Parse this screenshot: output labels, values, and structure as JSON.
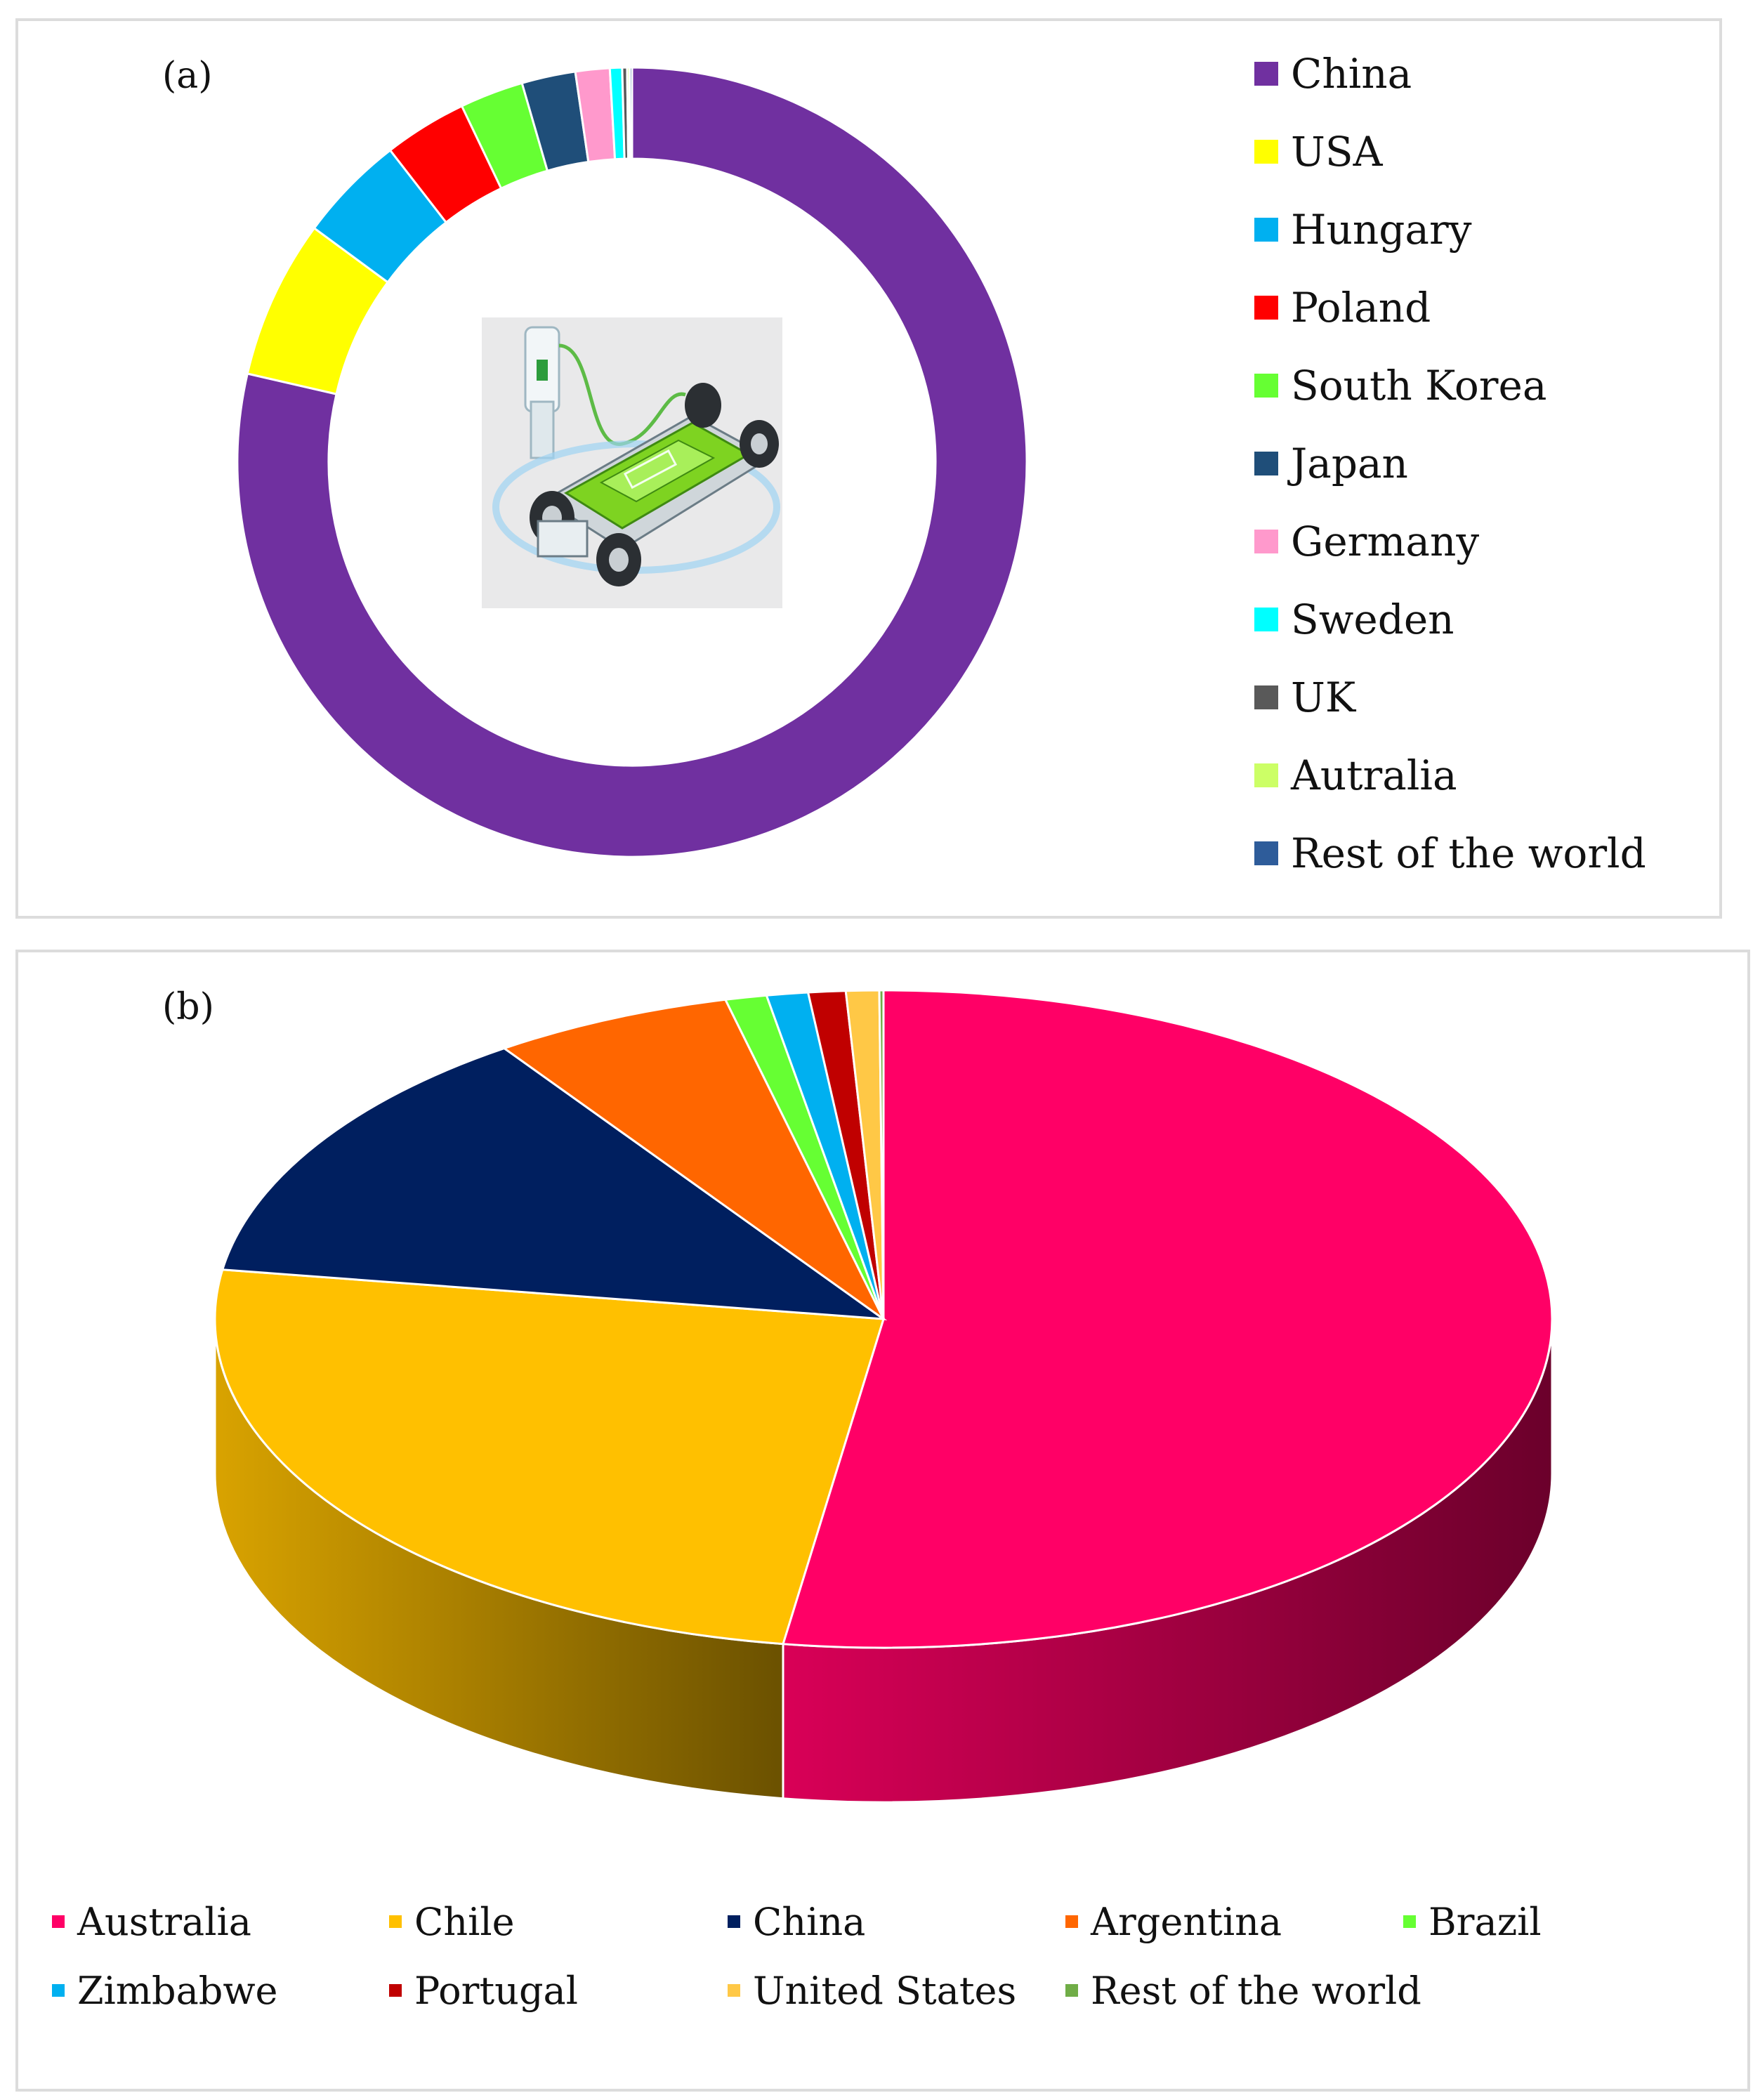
{
  "chart_data": [
    {
      "panel_label": "(a)",
      "type": "pie",
      "variant": "donut",
      "legend_placement": "right",
      "categories": [
        "China",
        "USA",
        "Hungary",
        "Poland",
        "South Korea",
        "Japan",
        "Germany",
        "Sweden",
        "UK",
        "Autralia",
        "Rest of the world"
      ],
      "values": [
        78.6,
        6.5,
        4.4,
        3.4,
        2.6,
        2.2,
        1.4,
        0.5,
        0.2,
        0.1,
        0.1
      ],
      "colors": [
        "#7030a0",
        "#ffff00",
        "#00b0f0",
        "#ff0000",
        "#66ff33",
        "#1f4e79",
        "#ff99cc",
        "#00ffff",
        "#595959",
        "#ccff66",
        "#2e5c9a"
      ]
    },
    {
      "panel_label": "(b)",
      "type": "pie",
      "variant": "3d",
      "legend_placement": "bottom",
      "categories": [
        "Australia",
        "Chile",
        "China",
        "Argentina",
        "Brazil",
        "Zimbabwe",
        "Portugal",
        "United States",
        "Rest of the world"
      ],
      "values": [
        52.4,
        25.0,
        13.0,
        5.8,
        1.0,
        1.0,
        0.9,
        0.8,
        0.1
      ],
      "colors": [
        "#ff0066",
        "#ffc000",
        "#001f5f",
        "#ff6600",
        "#66ff33",
        "#00b0f0",
        "#c00000",
        "#ffc846",
        "#70ad47"
      ]
    }
  ]
}
